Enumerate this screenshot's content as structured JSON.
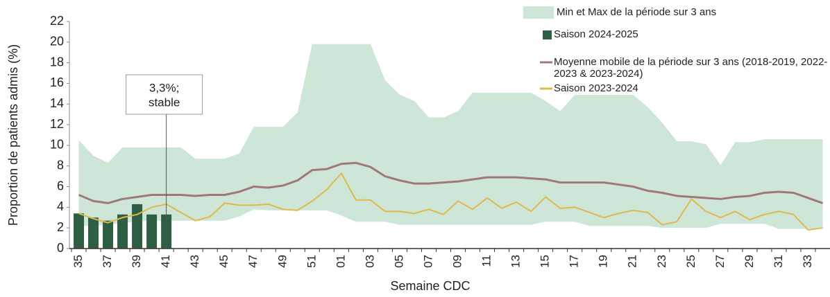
{
  "chart_data": {
    "type": "combo",
    "xlabel": "Semaine CDC",
    "ylabel": "Proportion de patients admis (%)",
    "categories": [
      "35",
      null,
      "37",
      null,
      "39",
      null,
      "41",
      null,
      "43",
      null,
      "45",
      null,
      "47",
      null,
      "49",
      null,
      "51",
      null,
      "01",
      null,
      "03",
      null,
      "05",
      null,
      "07",
      null,
      "09",
      null,
      "11",
      null,
      "13",
      null,
      "15",
      null,
      "17",
      null,
      "19",
      null,
      "21",
      null,
      "23",
      null,
      "25",
      null,
      "27",
      null,
      "29",
      null,
      "31",
      null,
      "33",
      null
    ],
    "ylim": [
      0,
      22
    ],
    "yticks": [
      0,
      2,
      4,
      6,
      8,
      10,
      12,
      14,
      16,
      18,
      20,
      22
    ],
    "grid": false,
    "series": [
      {
        "name": "Min et Max de la période sur 3 ans",
        "kind": "band",
        "color": "#cde6d8",
        "values": [
          10.5,
          9.0,
          8.3,
          9.8,
          9.8,
          9.8,
          9.8,
          9.8,
          8.7,
          8.7,
          8.7,
          9.2,
          11.8,
          11.8,
          11.8,
          13.2,
          19.8,
          19.8,
          19.8,
          19.8,
          19.8,
          16.3,
          14.9,
          14.3,
          12.7,
          12.7,
          13.3,
          15.1,
          15.1,
          15.1,
          15.1,
          15.1,
          14.3,
          13.3,
          14.9,
          14.9,
          14.9,
          14.9,
          14.9,
          13.7,
          12.2,
          10.4,
          10.4,
          10.1,
          8.1,
          10.3,
          10.3,
          10.6,
          10.6,
          10.6,
          10.6,
          10.6
        ],
        "lows": [
          2.2,
          2.2,
          2.3,
          2.5,
          2.6,
          2.7,
          2.7,
          2.7,
          2.7,
          2.7,
          2.7,
          3.1,
          3.8,
          3.7,
          3.7,
          3.7,
          3.7,
          3.7,
          3.2,
          2.6,
          2.6,
          2.6,
          2.3,
          2.3,
          2.3,
          2.3,
          2.3,
          2.3,
          2.3,
          2.3,
          2.3,
          2.3,
          2.6,
          2.6,
          2.6,
          2.2,
          2.2,
          2.2,
          2.2,
          2.2,
          2.0,
          2.0,
          2.0,
          2.0,
          2.4,
          2.4,
          2.4,
          2.4,
          1.9,
          1.9,
          1.9,
          1.9
        ]
      },
      {
        "name": "Saison 2024-2025",
        "kind": "bar",
        "color": "#2e5e43",
        "values": [
          3.4,
          3.0,
          2.7,
          3.3,
          4.3,
          3.3,
          3.3,
          null,
          null,
          null,
          null,
          null,
          null,
          null,
          null,
          null,
          null,
          null,
          null,
          null,
          null,
          null,
          null,
          null,
          null,
          null,
          null,
          null,
          null,
          null,
          null,
          null,
          null,
          null,
          null,
          null,
          null,
          null,
          null,
          null,
          null,
          null,
          null,
          null,
          null,
          null,
          null,
          null,
          null,
          null,
          null,
          null
        ]
      },
      {
        "name": "Moyenne mobile de la période sur 3 ans (2018-2019, 2022-2023 & 2023-2024)",
        "kind": "line",
        "color": "#a07878",
        "values": [
          5.2,
          4.6,
          4.4,
          4.8,
          5.0,
          5.2,
          5.2,
          5.2,
          5.1,
          5.2,
          5.2,
          5.5,
          6.0,
          5.9,
          6.1,
          6.6,
          7.6,
          7.7,
          8.2,
          8.3,
          7.9,
          7.0,
          6.6,
          6.3,
          6.3,
          6.4,
          6.5,
          6.7,
          6.9,
          6.9,
          6.9,
          6.8,
          6.7,
          6.4,
          6.4,
          6.4,
          6.4,
          6.2,
          6.0,
          5.6,
          5.4,
          5.1,
          5.0,
          4.9,
          4.8,
          5.0,
          5.1,
          5.4,
          5.5,
          5.4,
          4.9,
          4.4
        ]
      },
      {
        "name": "Saison 2023-2024",
        "kind": "line",
        "color": "#e0b94a",
        "values": [
          3.4,
          2.9,
          2.5,
          3.0,
          3.3,
          4.0,
          4.3,
          3.5,
          2.7,
          3.1,
          4.4,
          4.2,
          4.2,
          4.3,
          3.8,
          3.7,
          4.6,
          5.7,
          7.3,
          4.7,
          4.7,
          3.6,
          3.6,
          3.4,
          3.8,
          3.3,
          4.6,
          3.8,
          4.9,
          3.9,
          4.5,
          3.6,
          5.0,
          3.9,
          4.0,
          3.5,
          3.0,
          3.4,
          3.7,
          3.5,
          2.3,
          2.6,
          4.8,
          3.6,
          3.0,
          3.6,
          2.8,
          3.3,
          3.6,
          3.3,
          1.8,
          2.0
        ]
      }
    ],
    "annotation": [
      "3,3%;",
      "stable"
    ]
  }
}
